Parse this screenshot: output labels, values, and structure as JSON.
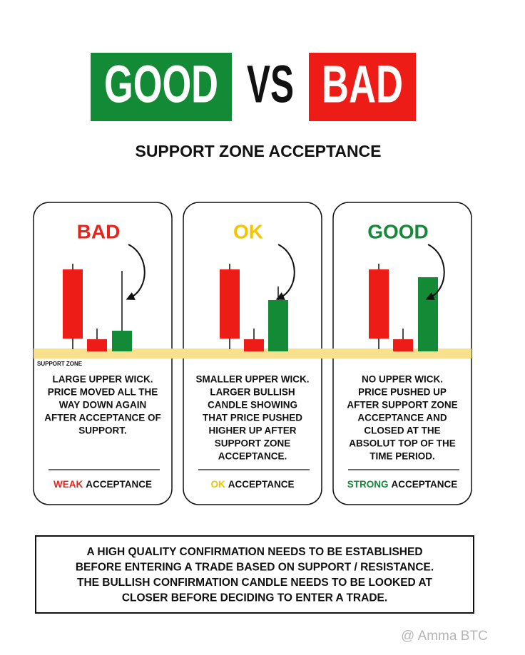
{
  "header": {
    "good": "GOOD",
    "vs": "VS",
    "bad": "BAD"
  },
  "subtitle": "SUPPORT ZONE ACCEPTANCE",
  "support_zone_label": "SUPPORT ZONE",
  "cards": [
    {
      "title": "BAD",
      "description": [
        "LARGE UPPER WICK.",
        "PRICE MOVED ALL THE",
        "WAY DOWN AGAIN",
        "AFTER ACCEPTANCE OF",
        "SUPPORT."
      ],
      "rating": "WEAK",
      "acceptance": "ACCEPTANCE"
    },
    {
      "title": "OK",
      "description": [
        "SMALLER UPPER WICK.",
        "LARGER BULLISH",
        "CANDLE SHOWING",
        "THAT PRICE PUSHED",
        "HIGHER UP AFTER",
        "SUPPORT ZONE",
        "ACCEPTANCE."
      ],
      "rating": "OK",
      "acceptance": "ACCEPTANCE"
    },
    {
      "title": "GOOD",
      "description": [
        "NO UPPER WICK.",
        "PRICE PUSHED UP",
        "AFTER SUPPORT ZONE",
        "ACCEPTANCE AND",
        "CLOSED AT THE",
        "ABSOLUT TOP OF THE",
        "TIME PERIOD."
      ],
      "rating": "STRONG",
      "acceptance": "ACCEPTANCE"
    }
  ],
  "note": [
    "A HIGH QUALITY CONFIRMATION NEEDS TO BE ESTABLISHED",
    "BEFORE ENTERING A TRADE BASED ON SUPPORT / RESISTANCE.",
    "THE BULLISH CONFIRMATION CANDLE NEEDS TO BE LOOKED AT",
    "CLOSER BEFORE DECIDING TO ENTER A TRADE."
  ],
  "watermark": "@ Amma BTC"
}
